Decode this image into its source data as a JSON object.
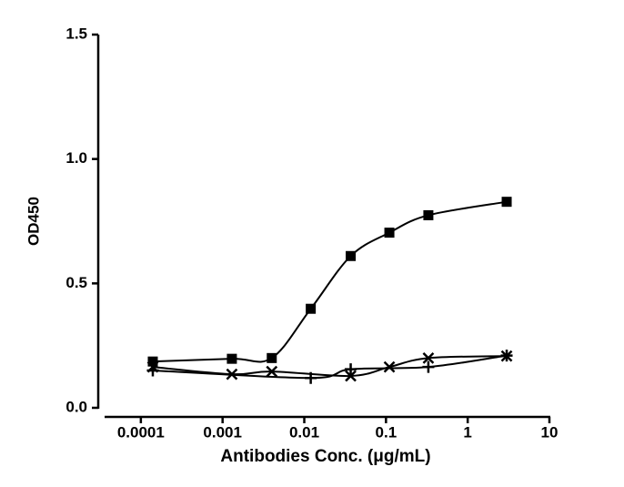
{
  "chart_data": {
    "type": "scatter",
    "xlabel": "Antibodies Conc. (μg/mL)",
    "ylabel": "OD450",
    "xscale": "log",
    "xlim": [
      3.6e-05,
      10
    ],
    "xticks": [
      0.0001,
      0.001,
      0.01,
      0.1,
      1,
      10
    ],
    "ylim": [
      0,
      1.5
    ],
    "yticks": [
      {
        "value": 0,
        "label": "0.0"
      },
      {
        "value": 0.5,
        "label": "0.5"
      },
      {
        "value": 1,
        "label": "1.0"
      },
      {
        "value": 1.5,
        "label": "1.5"
      }
    ],
    "grid": false,
    "series": [
      {
        "marker": "square",
        "color": "#000000",
        "x": [
          0.00014,
          0.0013,
          0.004,
          0.012,
          0.037,
          0.11,
          0.33,
          3
        ],
        "values": [
          0.186,
          0.197,
          0.2,
          0.398,
          0.61,
          0.704,
          0.774,
          0.828
        ]
      },
      {
        "marker": "x",
        "color": "#000000",
        "x": [
          0.00014,
          0.0013,
          0.004,
          0.037,
          0.11,
          0.33,
          3
        ],
        "values": [
          0.164,
          0.135,
          0.146,
          0.128,
          0.164,
          0.2,
          0.208
        ]
      },
      {
        "marker": "plus",
        "color": "#000000",
        "x": [
          0.00014,
          0.012,
          0.037,
          0.33,
          3
        ],
        "values": [
          0.15,
          0.12,
          0.155,
          0.164,
          0.21
        ]
      }
    ]
  }
}
